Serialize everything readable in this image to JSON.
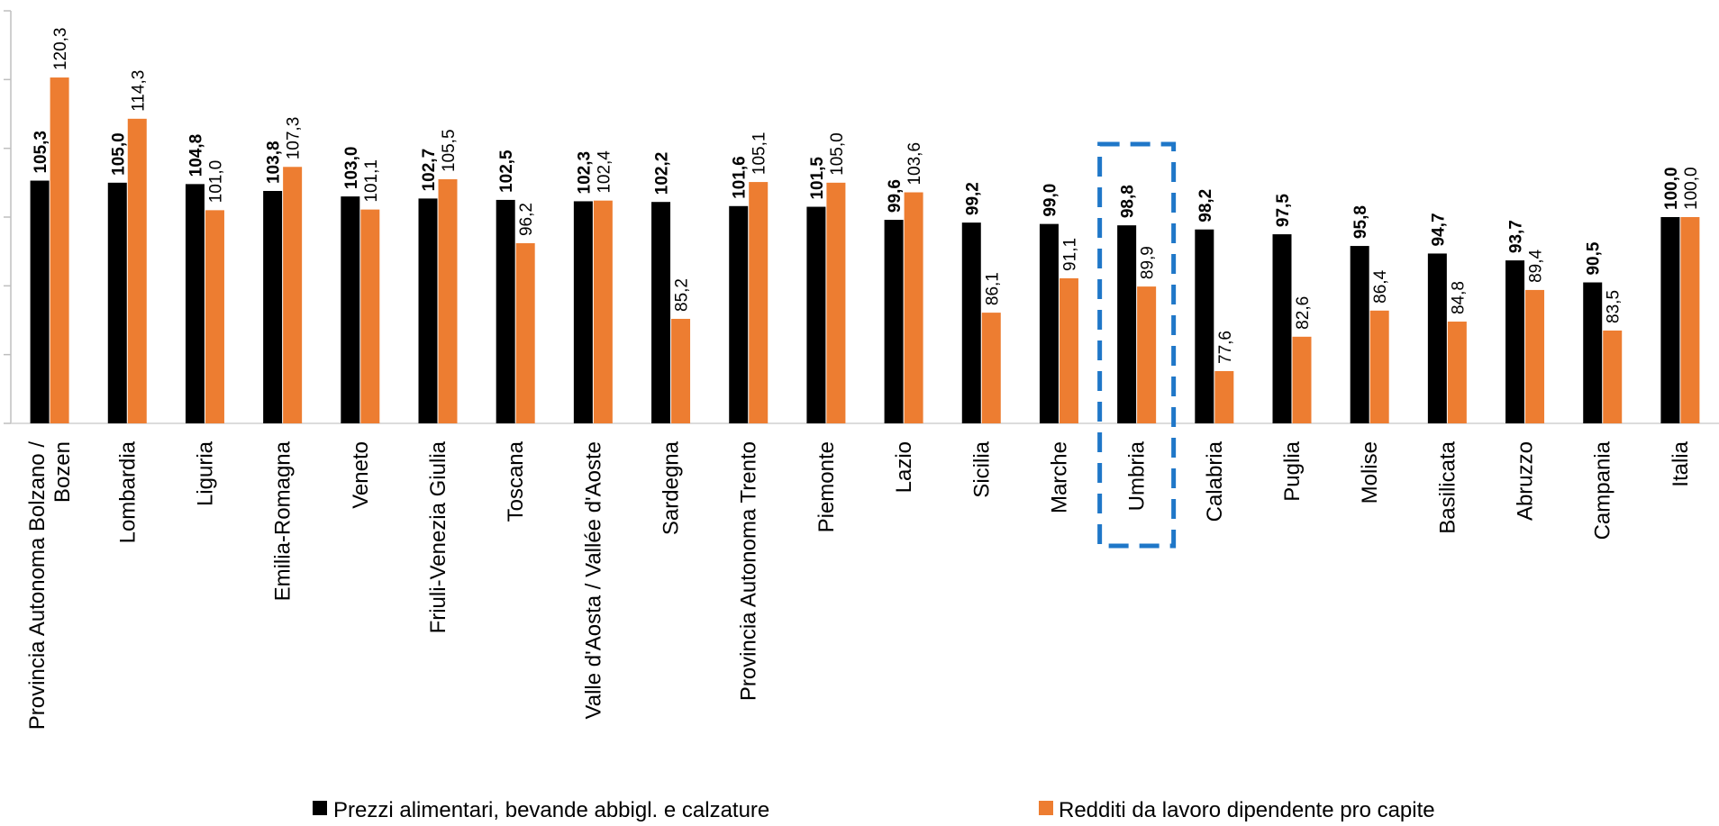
{
  "chart_data": {
    "type": "bar",
    "categories": [
      "Provincia Autonoma Bolzano / Bozen",
      "Lombardia",
      "Liguria",
      "Emilia-Romagna",
      "Veneto",
      "Friuli-Venezia Giulia",
      "Toscana",
      "Valle d'Aosta / Vallée d'Aoste",
      "Sardegna",
      "Provincia Autonoma Trento",
      "Piemonte",
      "Lazio",
      "Sicilia",
      "Marche",
      "Umbria",
      "Calabria",
      "Puglia",
      "Molise",
      "Basilicata",
      "Abruzzo",
      "Campania",
      "Italia"
    ],
    "series": [
      {
        "name": "Prezzi alimentari, bevande abbigl. e calzature",
        "color": "#000000",
        "values": [
          105.3,
          105.0,
          104.8,
          103.8,
          103.0,
          102.7,
          102.5,
          102.3,
          102.2,
          101.6,
          101.5,
          99.6,
          99.2,
          99.0,
          98.8,
          98.2,
          97.5,
          95.8,
          94.7,
          93.7,
          90.5,
          100.0
        ],
        "labels": [
          "105,3",
          "105,0",
          "104,8",
          "103,8",
          "103,0",
          "102,7",
          "102,5",
          "102,3",
          "102,2",
          "101,6",
          "101,5",
          "99,6",
          "99,2",
          "99,0",
          "98,8",
          "98,2",
          "97,5",
          "95,8",
          "94,7",
          "93,7",
          "90,5",
          "100,0"
        ]
      },
      {
        "name": "Redditi da lavoro dipendente pro capite",
        "color": "#ED7D31",
        "values": [
          120.3,
          114.3,
          101.0,
          107.3,
          101.1,
          105.5,
          96.2,
          102.4,
          85.2,
          105.1,
          105.0,
          103.6,
          86.1,
          91.1,
          89.9,
          77.6,
          82.6,
          86.4,
          84.8,
          89.4,
          83.5,
          100.0
        ],
        "labels": [
          "120,3",
          "114,3",
          "101,0",
          "107,3",
          "101,1",
          "105,5",
          "96,2",
          "102,4",
          "85,2",
          "105,1",
          "105,0",
          "103,6",
          "86,1",
          "91,1",
          "89,9",
          "77,6",
          "82,6",
          "86,4",
          "84,8",
          "89,4",
          "83,5",
          "100,0"
        ]
      }
    ],
    "ylim": [
      70,
      130
    ],
    "highlight_category": "Umbria",
    "highlight_color": "#1F77C8",
    "legend_position": "bottom"
  }
}
